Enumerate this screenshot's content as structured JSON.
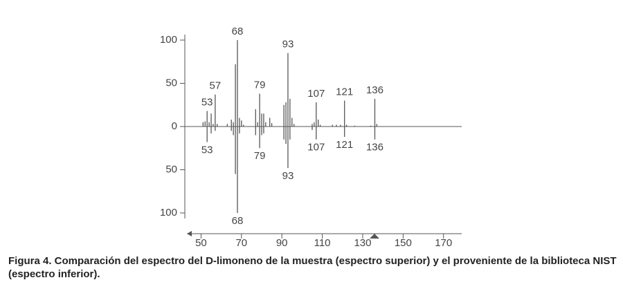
{
  "chart_data": {
    "type": "mirror_spectrum",
    "caption": "Figura 4. Comparación del espectro del D-limoneno de la muestra (espectro superior) y el proveniente de la biblioteca NIST (espectro inferior).",
    "xlim": [
      43,
      179
    ],
    "xticks": [
      50,
      70,
      90,
      110,
      130,
      150,
      170
    ],
    "ylim": [
      -100,
      100
    ],
    "yticks": [
      {
        "value": -100,
        "label": "100"
      },
      {
        "value": -50,
        "label": "50"
      },
      0,
      50,
      100
    ],
    "series": [
      {
        "color": "#555555",
        "x": [
          51,
          52,
          53,
          54,
          55,
          56,
          57,
          58,
          63,
          65,
          66,
          67,
          68,
          69,
          70,
          71,
          77,
          78,
          79,
          80,
          81,
          82,
          84,
          85,
          91,
          92,
          93,
          94,
          95,
          96,
          105,
          106,
          107,
          108,
          109,
          115,
          117,
          119,
          121,
          122,
          126,
          134,
          136,
          137
        ],
        "values": [
          5,
          6,
          18,
          5,
          15,
          3,
          37,
          3,
          3,
          8,
          5,
          72,
          100,
          10,
          7,
          2,
          20,
          5,
          38,
          15,
          15,
          5,
          10,
          4,
          25,
          28,
          85,
          32,
          10,
          3,
          3,
          5,
          28,
          8,
          2,
          2,
          2,
          2,
          30,
          2,
          1,
          1,
          32,
          3
        ],
        "peak_labels": [
          53,
          57,
          68,
          79,
          93,
          107,
          121,
          136
        ]
      },
      {
        "color": "#555555",
        "x": [
          53,
          55,
          57,
          65,
          66,
          67,
          68,
          69,
          77,
          79,
          80,
          81,
          91,
          92,
          93,
          94,
          105,
          107,
          121,
          136
        ],
        "values": [
          -18,
          -8,
          -5,
          -5,
          -10,
          -55,
          -100,
          -8,
          -10,
          -25,
          -10,
          -8,
          -15,
          -20,
          -48,
          -15,
          -4,
          -15,
          -12,
          -15
        ],
        "peak_labels": [
          53,
          68,
          79,
          93,
          107,
          121,
          136
        ]
      }
    ]
  }
}
